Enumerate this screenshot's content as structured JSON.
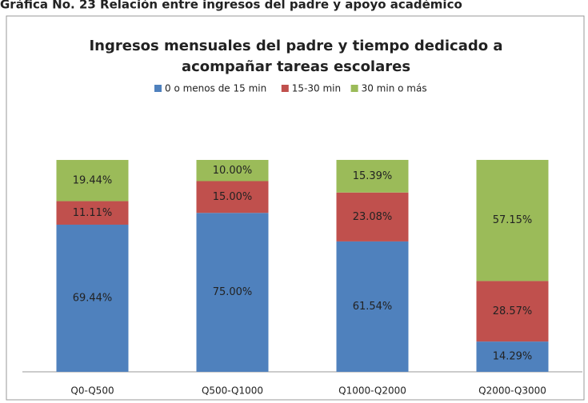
{
  "header": "Gráfica No. 23 Relación entre ingresos del padre y apoyo académico",
  "chart_data": {
    "type": "stacked_bar",
    "title": [
      "Ingresos mensuales del padre y tiempo dedicado a",
      "acompañar tareas escolares"
    ],
    "categories": [
      "Q0-Q500",
      "Q500-Q1000",
      "Q1000-Q2000",
      "Q2000-Q3000"
    ],
    "ylim": [
      0,
      100
    ],
    "series": [
      {
        "name": "0 o menos de 15 min",
        "color": "#4f81bd",
        "values": [
          69.44,
          75.0,
          61.54,
          14.29
        ],
        "value_labels": [
          "69.44%",
          "75.00%",
          "61.54%",
          "14.29%"
        ]
      },
      {
        "name": "15-30 min",
        "color": "#c0504d",
        "values": [
          11.11,
          15.0,
          23.08,
          28.57
        ],
        "value_labels": [
          "11.11%",
          "15.00%",
          "23.08%",
          "28.57%"
        ]
      },
      {
        "name": "30 min o más",
        "color": "#9bbb59",
        "values": [
          19.44,
          10.0,
          15.39,
          57.15
        ],
        "value_labels": [
          "19.44%",
          "10.00%",
          "15.39%",
          "57.15%"
        ]
      }
    ]
  }
}
